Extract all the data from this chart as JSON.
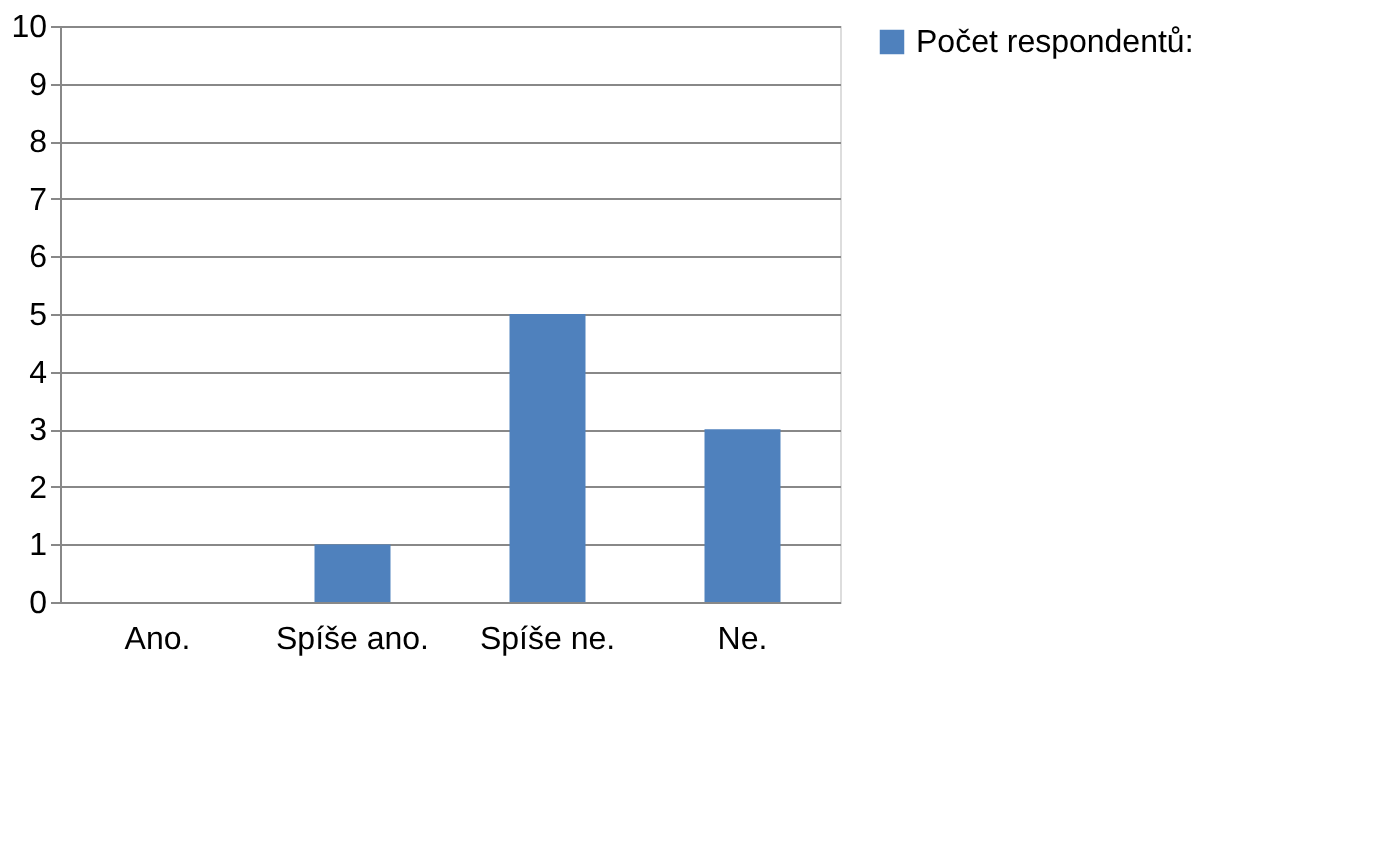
{
  "chart_data": {
    "type": "bar",
    "categories": [
      "Ano.",
      "Spíše ano.",
      "Spíše ne.",
      "Ne."
    ],
    "series": [
      {
        "name": "Počet respondentů:",
        "color": "#4f81bd",
        "values": [
          0,
          1,
          5,
          3
        ]
      }
    ],
    "ylim": [
      0,
      10
    ],
    "yticks": [
      0,
      1,
      2,
      3,
      4,
      5,
      6,
      7,
      8,
      9,
      10
    ],
    "grid": "y",
    "legend": "right"
  }
}
